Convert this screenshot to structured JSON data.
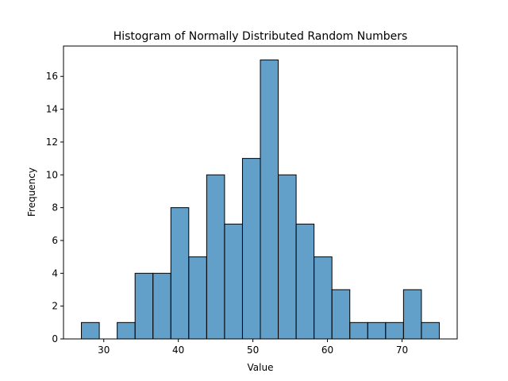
{
  "chart_data": {
    "type": "bar",
    "title": "Histogram of Normally Distributed Random Numbers",
    "xlabel": "Value",
    "ylabel": "Frequency",
    "xlim": [
      24.6,
      77.4
    ],
    "ylim": [
      0,
      17.85
    ],
    "xticks": [
      30,
      40,
      50,
      60,
      70
    ],
    "yticks": [
      0,
      2,
      4,
      6,
      8,
      10,
      12,
      14,
      16
    ],
    "bin_edges": [
      27.0,
      29.4,
      31.8,
      34.2,
      36.6,
      39.0,
      41.4,
      43.8,
      46.2,
      48.6,
      51.0,
      53.4,
      55.8,
      58.2,
      60.6,
      63.0,
      65.4,
      67.8,
      70.2,
      72.6,
      75.0
    ],
    "values": [
      1,
      0,
      1,
      4,
      4,
      8,
      5,
      10,
      7,
      11,
      17,
      10,
      7,
      5,
      3,
      1,
      1,
      1,
      3,
      1
    ],
    "grid": false,
    "colors": {
      "bar_fill": "#1f77b4",
      "bar_opacity": "0.7",
      "bar_edge": "#000000"
    }
  }
}
